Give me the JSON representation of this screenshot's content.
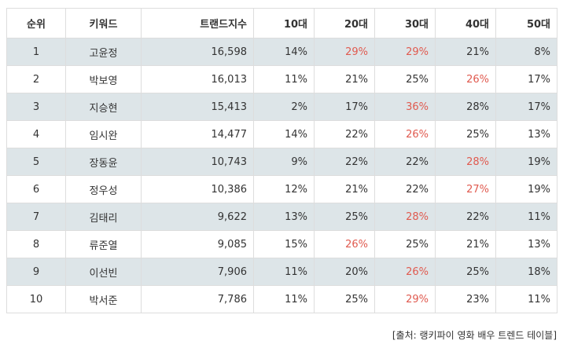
{
  "table": {
    "headers": [
      "순위",
      "키워드",
      "트랜드지수",
      "10대",
      "20대",
      "30대",
      "40대",
      "50대"
    ],
    "rows": [
      {
        "rank": "1",
        "keyword": "고윤정",
        "index": "16,598",
        "a10": "14%",
        "a20": "29%",
        "a30": "29%",
        "a40": "21%",
        "a50": "8%",
        "hl": [
          "a20",
          "a30"
        ]
      },
      {
        "rank": "2",
        "keyword": "박보영",
        "index": "16,013",
        "a10": "11%",
        "a20": "21%",
        "a30": "25%",
        "a40": "26%",
        "a50": "17%",
        "hl": [
          "a40"
        ]
      },
      {
        "rank": "3",
        "keyword": "지승현",
        "index": "15,413",
        "a10": "2%",
        "a20": "17%",
        "a30": "36%",
        "a40": "28%",
        "a50": "17%",
        "hl": [
          "a30"
        ]
      },
      {
        "rank": "4",
        "keyword": "임시완",
        "index": "14,477",
        "a10": "14%",
        "a20": "22%",
        "a30": "26%",
        "a40": "25%",
        "a50": "13%",
        "hl": [
          "a30"
        ]
      },
      {
        "rank": "5",
        "keyword": "장동윤",
        "index": "10,743",
        "a10": "9%",
        "a20": "22%",
        "a30": "22%",
        "a40": "28%",
        "a50": "19%",
        "hl": [
          "a40"
        ]
      },
      {
        "rank": "6",
        "keyword": "정우성",
        "index": "10,386",
        "a10": "12%",
        "a20": "21%",
        "a30": "22%",
        "a40": "27%",
        "a50": "19%",
        "hl": [
          "a40"
        ]
      },
      {
        "rank": "7",
        "keyword": "김태리",
        "index": "9,622",
        "a10": "13%",
        "a20": "25%",
        "a30": "28%",
        "a40": "22%",
        "a50": "11%",
        "hl": [
          "a30"
        ]
      },
      {
        "rank": "8",
        "keyword": "류준열",
        "index": "9,085",
        "a10": "15%",
        "a20": "26%",
        "a30": "25%",
        "a40": "21%",
        "a50": "13%",
        "hl": [
          "a20"
        ]
      },
      {
        "rank": "9",
        "keyword": "이선빈",
        "index": "7,906",
        "a10": "11%",
        "a20": "20%",
        "a30": "26%",
        "a40": "25%",
        "a50": "18%",
        "hl": [
          "a30"
        ]
      },
      {
        "rank": "10",
        "keyword": "박서준",
        "index": "7,786",
        "a10": "11%",
        "a20": "25%",
        "a30": "29%",
        "a40": "23%",
        "a50": "11%",
        "hl": [
          "a30"
        ]
      }
    ]
  },
  "source": "[출처: 랭키파이 영화 배우 트렌드 테이블]",
  "colors": {
    "highlight": "#e05a4f",
    "shaded_row": "#dde5e8",
    "border": "#dddddd"
  }
}
